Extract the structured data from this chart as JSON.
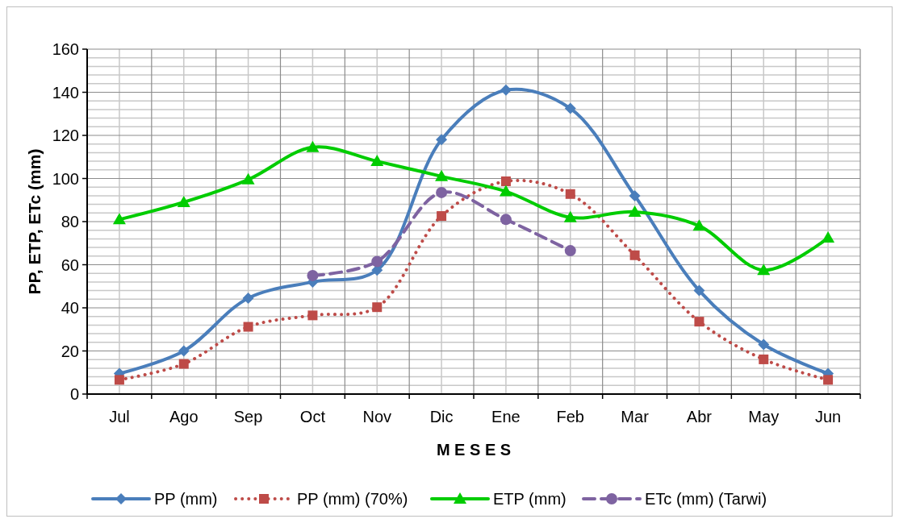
{
  "chart_data": {
    "type": "line",
    "xlabel": "M E S E S",
    "ylabel": "PP, ETP, ETc (mm)",
    "categories": [
      "Jul",
      "Ago",
      "Sep",
      "Oct",
      "Nov",
      "Dic",
      "Ene",
      "Feb",
      "Mar",
      "Abr",
      "May",
      "Jun"
    ],
    "ylim": [
      0,
      160
    ],
    "yticks": [
      0,
      20,
      40,
      60,
      80,
      100,
      120,
      140,
      160
    ],
    "grid": true,
    "legend": "bottom",
    "series": [
      {
        "name": "PP (mm)",
        "color": "#4a7ebb",
        "marker": "diamond",
        "line_style": "solid",
        "values": [
          9.5,
          20,
          44.5,
          52,
          57.5,
          118,
          141,
          132.5,
          92,
          48,
          23,
          9.5
        ]
      },
      {
        "name": "PP (mm) (70%)",
        "color": "#be4b48",
        "marker": "square",
        "line_style": "dotted",
        "values": [
          6.6,
          14,
          31.2,
          36.5,
          40.3,
          82.6,
          98.7,
          92.8,
          64.4,
          33.6,
          16.1,
          6.6
        ]
      },
      {
        "name": "ETP (mm)",
        "color": "#00cc00",
        "marker": "triangle",
        "line_style": "solid",
        "values": [
          81,
          89,
          99.5,
          114.5,
          108,
          101,
          94,
          82,
          84.5,
          78,
          57.5,
          72.5
        ]
      },
      {
        "name": "ETc (mm) (Tarwi)",
        "color": "#7e63a1",
        "marker": "circle",
        "line_style": "dashed",
        "values": [
          null,
          null,
          null,
          55,
          61.5,
          93.5,
          81,
          66.5,
          null,
          null,
          null,
          null
        ]
      }
    ]
  }
}
